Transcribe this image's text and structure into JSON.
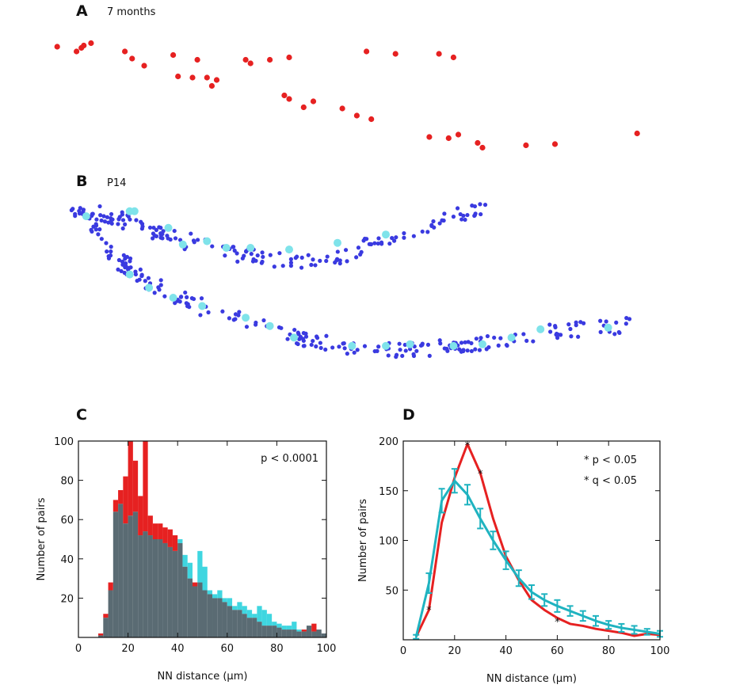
{
  "panels": {
    "a": {
      "letter": "A",
      "label": "7 months"
    },
    "b": {
      "letter": "B",
      "label": "P14"
    },
    "c": {
      "letter": "C"
    },
    "d": {
      "letter": "D"
    }
  },
  "colors": {
    "red": "#e62121",
    "cyan": "#3fd6e0",
    "gray": "#5a6b73",
    "blue": "#3a3ae0",
    "lightcyan": "#7fe3ea"
  },
  "chart_data": [
    {
      "type": "scatter",
      "panel": "A",
      "title": "7 months",
      "series": [
        {
          "name": "",
          "color": "#e62121",
          "points": [
            [
              0.02,
              0.94
            ],
            [
              0.06,
              0.9
            ],
            [
              0.07,
              0.93
            ],
            [
              0.075,
              0.95
            ],
            [
              0.09,
              0.97
            ],
            [
              0.16,
              0.9
            ],
            [
              0.175,
              0.84
            ],
            [
              0.2,
              0.78
            ],
            [
              0.26,
              0.87
            ],
            [
              0.27,
              0.69
            ],
            [
              0.3,
              0.68
            ],
            [
              0.31,
              0.83
            ],
            [
              0.33,
              0.68
            ],
            [
              0.35,
              0.66
            ],
            [
              0.34,
              0.61
            ],
            [
              0.41,
              0.83
            ],
            [
              0.42,
              0.8
            ],
            [
              0.46,
              0.83
            ],
            [
              0.5,
              0.85
            ],
            [
              0.49,
              0.53
            ],
            [
              0.5,
              0.5
            ],
            [
              0.53,
              0.43
            ],
            [
              0.55,
              0.48
            ],
            [
              0.61,
              0.42
            ],
            [
              0.64,
              0.36
            ],
            [
              0.67,
              0.33
            ],
            [
              0.66,
              0.9
            ],
            [
              0.72,
              0.88
            ],
            [
              0.81,
              0.88
            ],
            [
              0.84,
              0.85
            ],
            [
              0.79,
              0.18
            ],
            [
              0.83,
              0.17
            ],
            [
              0.85,
              0.2
            ],
            [
              0.89,
              0.13
            ],
            [
              0.9,
              0.09
            ],
            [
              0.99,
              0.11
            ],
            [
              1.05,
              0.12
            ],
            [
              1.22,
              0.21
            ]
          ]
        }
      ]
    },
    {
      "type": "scatter",
      "panel": "B",
      "title": "P14",
      "series": [
        {
          "name": "",
          "color": "#3a3ae0",
          "points": []
        },
        {
          "name": "",
          "color": "#7fe3ea",
          "points": [
            [
              0.08,
              0.89
            ],
            [
              0.17,
              0.92
            ],
            [
              0.18,
              0.92
            ],
            [
              0.25,
              0.82
            ],
            [
              0.28,
              0.72
            ],
            [
              0.33,
              0.74
            ],
            [
              0.37,
              0.7
            ],
            [
              0.42,
              0.7
            ],
            [
              0.5,
              0.69
            ],
            [
              0.6,
              0.73
            ],
            [
              0.7,
              0.78
            ],
            [
              0.17,
              0.54
            ],
            [
              0.21,
              0.46
            ],
            [
              0.26,
              0.4
            ],
            [
              0.32,
              0.35
            ],
            [
              0.41,
              0.28
            ],
            [
              0.46,
              0.23
            ],
            [
              0.51,
              0.16
            ],
            [
              0.63,
              0.11
            ],
            [
              0.7,
              0.11
            ],
            [
              0.75,
              0.12
            ],
            [
              0.84,
              0.11
            ],
            [
              0.9,
              0.12
            ],
            [
              0.96,
              0.16
            ],
            [
              1.02,
              0.21
            ],
            [
              1.16,
              0.22
            ]
          ]
        }
      ]
    },
    {
      "type": "bar",
      "panel": "C",
      "xlabel": "NN distance (µm)",
      "ylabel": "Number of pairs",
      "xlim": [
        0,
        100
      ],
      "ylim": [
        0,
        100
      ],
      "xticks": [
        0,
        20,
        40,
        60,
        80,
        100
      ],
      "yticks": [
        20,
        40,
        60,
        80,
        100
      ],
      "annotation": "p < 0.0001",
      "bin_width": 2,
      "bin_starts": [
        2,
        4,
        6,
        8,
        10,
        12,
        14,
        16,
        18,
        20,
        22,
        24,
        26,
        28,
        30,
        32,
        34,
        36,
        38,
        40,
        42,
        44,
        46,
        48,
        50,
        52,
        54,
        56,
        58,
        60,
        62,
        64,
        66,
        68,
        70,
        72,
        74,
        76,
        78,
        80,
        82,
        84,
        86,
        88,
        90,
        92,
        94,
        96,
        98
      ],
      "series": [
        {
          "name": "",
          "color": "#e62121",
          "values": [
            0,
            0,
            0,
            2,
            12,
            28,
            70,
            75,
            82,
            100,
            90,
            72,
            100,
            62,
            58,
            58,
            56,
            55,
            52,
            48,
            36,
            30,
            28,
            28,
            24,
            22,
            20,
            20,
            18,
            16,
            14,
            14,
            12,
            10,
            10,
            8,
            6,
            6,
            6,
            5,
            4,
            4,
            4,
            3,
            4,
            6,
            7,
            4,
            2
          ]
        },
        {
          "name": "",
          "color": "#3fd6e0",
          "values": [
            0,
            0,
            0,
            1,
            10,
            24,
            64,
            68,
            58,
            62,
            64,
            52,
            54,
            52,
            50,
            50,
            48,
            46,
            44,
            50,
            42,
            38,
            26,
            44,
            36,
            24,
            22,
            24,
            20,
            20,
            16,
            18,
            16,
            14,
            12,
            16,
            14,
            12,
            8,
            7,
            6,
            6,
            8,
            4,
            3,
            6,
            3,
            4,
            2
          ]
        }
      ],
      "overlap_color": "#5a6b73"
    },
    {
      "type": "line",
      "panel": "D",
      "xlabel": "NN distance (µm)",
      "ylabel": "Number of pairs",
      "xlim": [
        0,
        100
      ],
      "ylim": [
        0,
        200
      ],
      "xticks": [
        0,
        20,
        40,
        60,
        80,
        100
      ],
      "yticks": [
        50,
        100,
        150,
        200
      ],
      "annotations": [
        "* p < 0.05",
        "* q < 0.05"
      ],
      "significance_marks": [
        [
          10,
          31
        ],
        [
          25,
          197
        ],
        [
          30,
          168
        ],
        [
          60,
          19
        ]
      ],
      "series": [
        {
          "name": "",
          "color": "#e62121",
          "x": [
            5,
            10,
            15,
            20,
            25,
            30,
            35,
            40,
            45,
            50,
            55,
            60,
            65,
            70,
            75,
            80,
            85,
            90,
            95,
            100
          ],
          "y": [
            3,
            30,
            118,
            163,
            197,
            168,
            122,
            84,
            60,
            40,
            30,
            22,
            16,
            14,
            11,
            9,
            7,
            4,
            6,
            5
          ]
        },
        {
          "name": "",
          "color": "#1fb3c0",
          "x": [
            5,
            10,
            15,
            20,
            25,
            30,
            35,
            40,
            45,
            50,
            55,
            60,
            65,
            70,
            75,
            80,
            85,
            90,
            95,
            100
          ],
          "y": [
            3,
            57,
            140,
            160,
            146,
            122,
            100,
            80,
            62,
            48,
            40,
            34,
            29,
            24,
            19,
            15,
            12,
            10,
            8,
            6
          ],
          "err": [
            2,
            10,
            12,
            12,
            10,
            10,
            9,
            9,
            8,
            7,
            6,
            6,
            5,
            5,
            5,
            4,
            4,
            4,
            3,
            3
          ]
        }
      ]
    }
  ]
}
